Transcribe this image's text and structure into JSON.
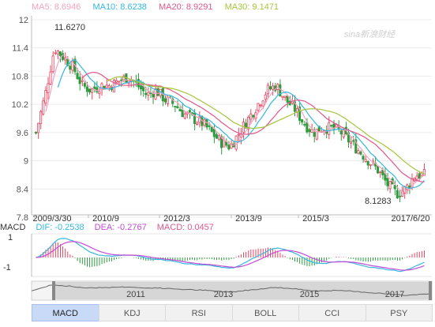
{
  "chart_data": {
    "type": "candlestick",
    "watermark": "sina新浪财经",
    "ma_legend": [
      {
        "label": "MA5: 8.6946",
        "color": "#f4a3c2"
      },
      {
        "label": "MA10: 8.6238",
        "color": "#35b7e0"
      },
      {
        "label": "MA20: 8.9291",
        "color": "#e0578c"
      },
      {
        "label": "MA30: 9.1471",
        "color": "#a4c639"
      }
    ],
    "price_axis": {
      "ticks": [
        "12",
        "11.4",
        "10.8",
        "10.2",
        "9.6",
        "9",
        "8.4",
        "7.8"
      ],
      "ylim": [
        7.8,
        12
      ]
    },
    "time_axis": {
      "labels": [
        "2009/3/30",
        "2010/9",
        "2012/3",
        "2013/9",
        "2015/3",
        "2017/6/20"
      ]
    },
    "annotations": {
      "high": "11.6270",
      "low": "8.1283"
    },
    "price_path": [
      9.6,
      10.4,
      11.4,
      11.2,
      11.0,
      10.6,
      10.5,
      10.6,
      10.6,
      10.7,
      10.8,
      10.6,
      10.4,
      10.5,
      10.3,
      10.2,
      10.0,
      9.9,
      9.8,
      9.6,
      9.4,
      9.3,
      9.6,
      9.9,
      10.2,
      10.5,
      10.6,
      10.3,
      10.1,
      9.8,
      9.6,
      9.7,
      9.7,
      9.6,
      9.4,
      9.2,
      9.0,
      8.8,
      8.5,
      8.3,
      8.4,
      8.7,
      8.7
    ],
    "ma_levels": {
      "ma5": 8.6946,
      "ma10": 8.6238,
      "ma20": 8.9291,
      "ma30": 9.1471
    },
    "macd": {
      "legend": [
        {
          "label": "MACD",
          "color": "#333333"
        },
        {
          "label": "DIF: -0.2538",
          "color": "#35b7e0"
        },
        {
          "label": "DEA: -0.2767",
          "color": "#c44bd6"
        },
        {
          "label": "MACD: 0.0457",
          "color": "#e0578c"
        }
      ],
      "ticks": [
        "1",
        "-1"
      ],
      "dif": -0.2538,
      "dea": -0.2767,
      "hist": 0.0457
    },
    "navigator": {
      "labels": [
        "2011",
        "2013",
        "2015",
        "2017"
      ]
    }
  },
  "tabs": [
    {
      "label": "MACD",
      "active": true
    },
    {
      "label": "KDJ",
      "active": false
    },
    {
      "label": "RSI",
      "active": false
    },
    {
      "label": "BOLL",
      "active": false
    },
    {
      "label": "CCI",
      "active": false
    },
    {
      "label": "PSY",
      "active": false
    }
  ]
}
